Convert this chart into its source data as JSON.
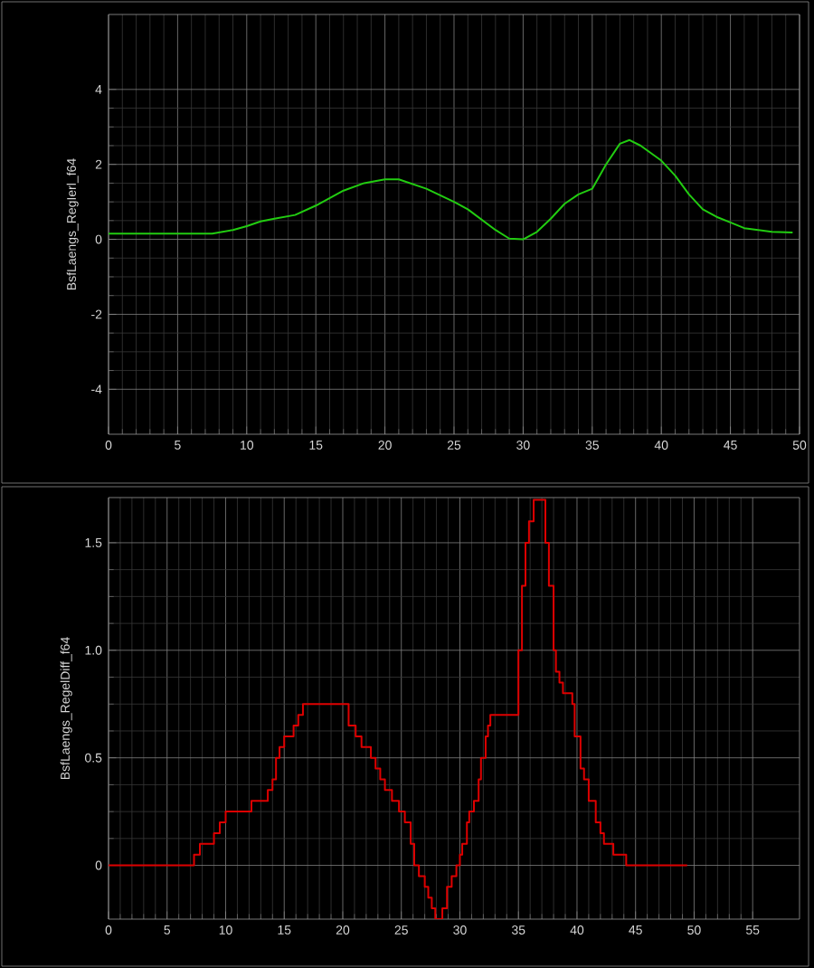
{
  "chart_data": [
    {
      "type": "line",
      "ylabel": "BsfLaengs_RegIerl_f64",
      "color": "#22cc11",
      "xlim": [
        0,
        50
      ],
      "ylim": [
        -5.2,
        6
      ],
      "xticks": [
        0,
        5,
        10,
        15,
        20,
        25,
        30,
        35,
        40,
        45,
        50
      ],
      "yticks": [
        -4,
        -2,
        0,
        2,
        4
      ],
      "grid": true,
      "x": [
        0,
        5,
        7.5,
        9,
        10,
        11,
        12,
        13.5,
        15,
        17,
        18.5,
        20,
        21,
        23,
        25,
        26,
        28,
        29,
        30,
        31,
        32,
        33,
        34,
        35,
        36,
        37,
        37.7,
        38.5,
        40,
        41,
        42,
        43,
        44,
        45,
        46,
        47,
        48,
        49.5
      ],
      "values": [
        0.15,
        0.15,
        0.15,
        0.25,
        0.35,
        0.48,
        0.55,
        0.65,
        0.9,
        1.3,
        1.5,
        1.6,
        1.6,
        1.35,
        1.0,
        0.8,
        0.25,
        0.02,
        0.0,
        0.2,
        0.55,
        0.95,
        1.2,
        1.35,
        2.0,
        2.55,
        2.65,
        2.5,
        2.1,
        1.7,
        1.2,
        0.8,
        0.6,
        0.45,
        0.3,
        0.25,
        0.2,
        0.18
      ]
    },
    {
      "type": "step",
      "ylabel": "BsfLaengs_RegelDiff_f64",
      "color": "#dd0000",
      "xlim": [
        0,
        59
      ],
      "ylim": [
        -0.25,
        1.71
      ],
      "xticks": [
        0,
        5,
        10,
        15,
        20,
        25,
        30,
        35,
        40,
        45,
        50,
        55
      ],
      "yticks": [
        0,
        {
          "value": 0.5,
          "label": "0.5"
        },
        {
          "value": 1,
          "label": "1.0"
        },
        {
          "value": 1.5,
          "label": "1.5"
        }
      ],
      "grid": true,
      "x": [
        0,
        7.3,
        7.8,
        9.0,
        9.5,
        10.0,
        12.2,
        13.6,
        14.0,
        14.3,
        14.6,
        15.0,
        15.8,
        16.2,
        16.6,
        20.5,
        21.1,
        21.6,
        22.4,
        22.8,
        23.2,
        23.6,
        24.2,
        24.8,
        25.3,
        25.8,
        26.1,
        26.5,
        27.0,
        27.3,
        27.6,
        27.9,
        28.5,
        28.9,
        29.3,
        29.7,
        30.0,
        30.2,
        30.6,
        30.8,
        31.2,
        31.6,
        31.8,
        32.2,
        32.4,
        32.6,
        35.0,
        35.3,
        35.6,
        35.9,
        36.3,
        36.6,
        37.3,
        37.6,
        38.0,
        38.2,
        38.5,
        38.8,
        39.6,
        39.8,
        40.3,
        40.6,
        41.0,
        41.6,
        42.0,
        42.3,
        43.1,
        44.2,
        49.4
      ],
      "values": [
        0,
        0.05,
        0.1,
        0.15,
        0.2,
        0.25,
        0.3,
        0.35,
        0.4,
        0.5,
        0.55,
        0.6,
        0.65,
        0.7,
        0.75,
        0.65,
        0.6,
        0.55,
        0.5,
        0.45,
        0.4,
        0.35,
        0.3,
        0.25,
        0.2,
        0.1,
        0,
        -0.05,
        -0.1,
        -0.15,
        -0.2,
        -0.25,
        -0.2,
        -0.1,
        -0.05,
        0,
        0.05,
        0.1,
        0.2,
        0.25,
        0.3,
        0.4,
        0.5,
        0.6,
        0.65,
        0.7,
        1.0,
        1.3,
        1.5,
        1.6,
        1.7,
        1.7,
        1.5,
        1.3,
        1.0,
        0.9,
        0.85,
        0.8,
        0.75,
        0.6,
        0.45,
        0.4,
        0.3,
        0.2,
        0.15,
        0.1,
        0.05,
        0,
        0
      ]
    }
  ]
}
